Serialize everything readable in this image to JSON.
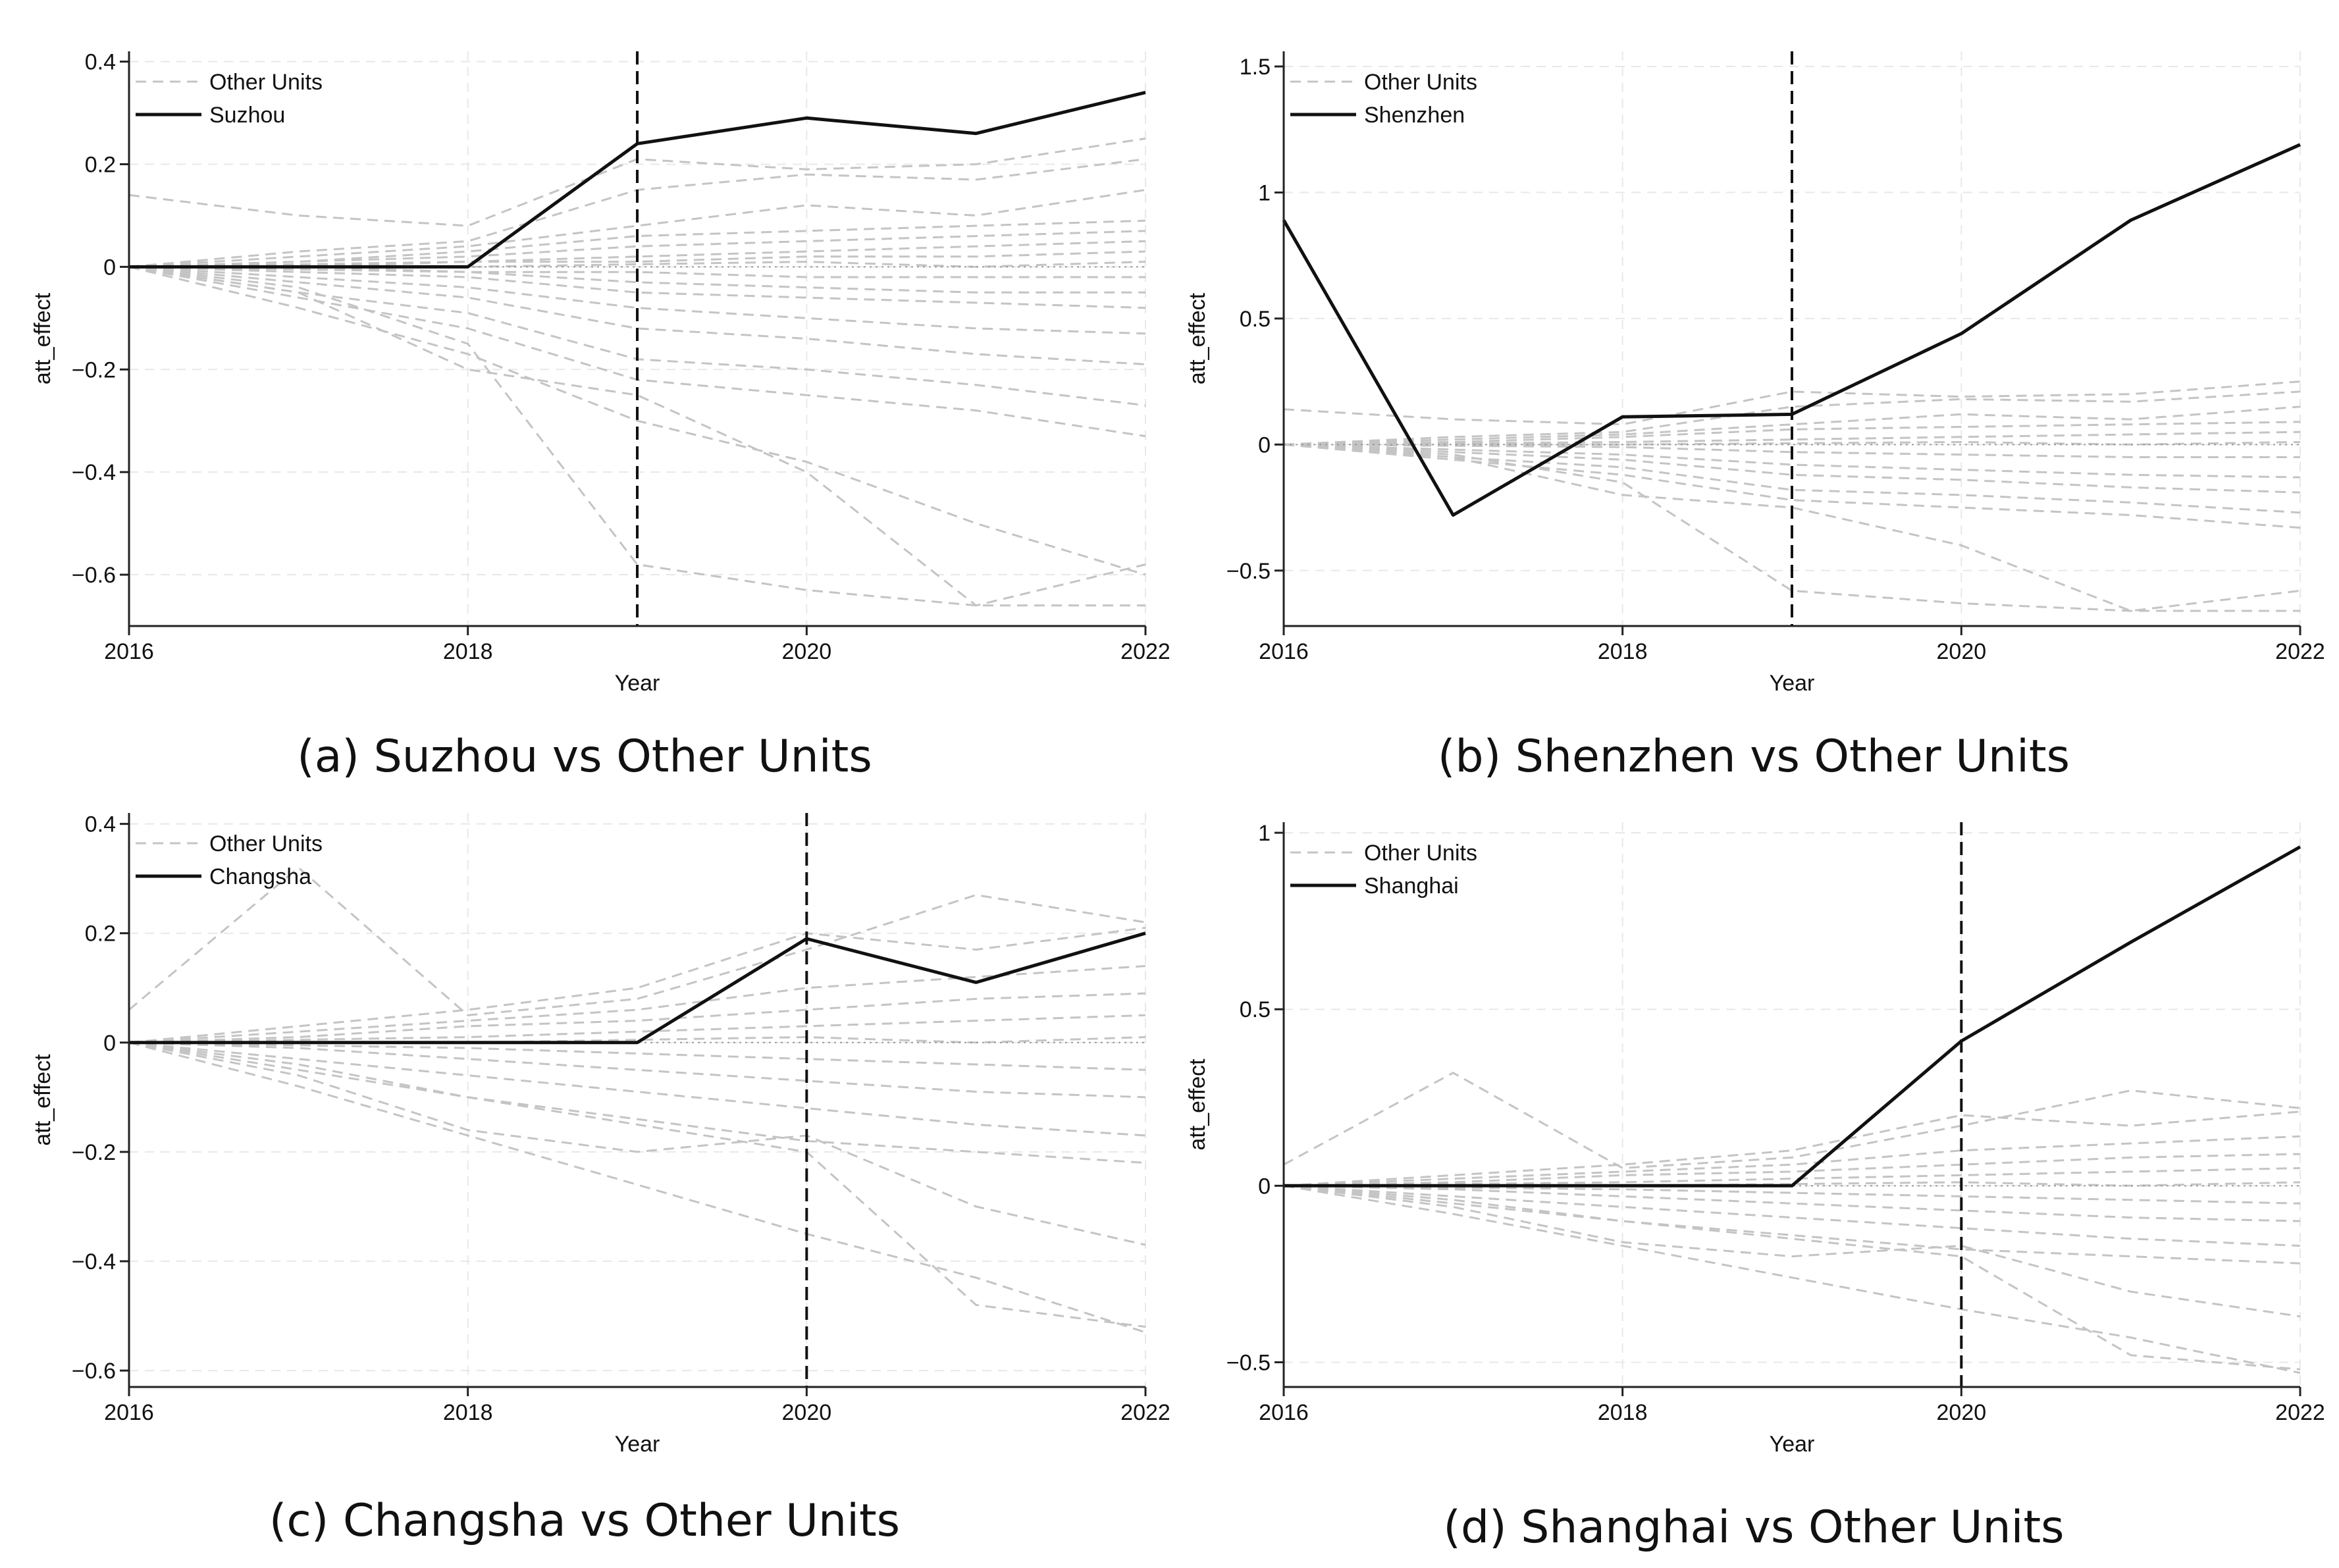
{
  "figure": {
    "description_labels": [
      "(a)",
      "(b)",
      "(c)",
      "(d)"
    ]
  },
  "chart_data": [
    {
      "type": "line",
      "caption": "(a) Suzhou vs Other Units",
      "xlabel": "Year",
      "ylabel": "att_effect",
      "xlim": [
        2016,
        2022
      ],
      "ylim": [
        -0.7,
        0.42
      ],
      "xticks": [
        2016,
        2018,
        2020,
        2022
      ],
      "yticks": [
        0.4,
        0.2,
        0,
        -0.2,
        -0.4,
        -0.6
      ],
      "ytick_labels": [
        "0.4",
        "0.2",
        "0",
        "−0.2",
        "−0.4",
        "−0.6"
      ],
      "treatment_year": 2019,
      "legend": [
        "Other Units",
        "Suzhou"
      ],
      "x": [
        2016,
        2017,
        2018,
        2019,
        2020,
        2021,
        2022
      ],
      "treated": {
        "name": "Suzhou",
        "values": [
          0,
          0,
          0,
          0.24,
          0.29,
          0.26,
          0.34
        ]
      },
      "others": [
        [
          0.14,
          0.1,
          0.08,
          0.21,
          0.19,
          0.2,
          0.25
        ],
        [
          0,
          0.03,
          0.05,
          0.15,
          0.18,
          0.17,
          0.21
        ],
        [
          0,
          0.02,
          0.04,
          0.08,
          0.12,
          0.1,
          0.15
        ],
        [
          0,
          0.01,
          0.03,
          0.06,
          0.07,
          0.08,
          0.09
        ],
        [
          0,
          0.01,
          0.02,
          0.04,
          0.05,
          0.06,
          0.07
        ],
        [
          0,
          0.005,
          0.01,
          0.02,
          0.03,
          0.04,
          0.05
        ],
        [
          0,
          0,
          0.01,
          0.01,
          0.02,
          0.02,
          0.03
        ],
        [
          0,
          0,
          0,
          0.005,
          0.01,
          0.0,
          0.01
        ],
        [
          0,
          0,
          -0.01,
          -0.01,
          -0.02,
          -0.02,
          -0.02
        ],
        [
          0,
          -0.005,
          -0.01,
          -0.03,
          -0.04,
          -0.05,
          -0.05
        ],
        [
          0,
          -0.01,
          -0.02,
          -0.05,
          -0.06,
          -0.07,
          -0.08
        ],
        [
          0,
          -0.02,
          -0.04,
          -0.08,
          -0.1,
          -0.12,
          -0.13
        ],
        [
          0,
          -0.03,
          -0.06,
          -0.12,
          -0.14,
          -0.17,
          -0.19
        ],
        [
          0,
          -0.05,
          -0.09,
          -0.18,
          -0.2,
          -0.23,
          -0.27
        ],
        [
          0,
          -0.06,
          -0.12,
          -0.22,
          -0.25,
          -0.28,
          -0.33
        ],
        [
          0,
          -0.08,
          -0.17,
          -0.3,
          -0.38,
          -0.5,
          -0.6
        ],
        [
          0,
          -0.04,
          -0.15,
          -0.58,
          -0.63,
          -0.66,
          -0.66
        ],
        [
          0,
          -0.05,
          -0.2,
          -0.25,
          -0.4,
          -0.66,
          -0.58
        ]
      ]
    },
    {
      "type": "line",
      "caption": "(b) Shenzhen vs Other Units",
      "xlabel": "Year",
      "ylabel": "att_effect",
      "xlim": [
        2016,
        2022
      ],
      "ylim": [
        -0.72,
        1.56
      ],
      "xticks": [
        2016,
        2018,
        2020,
        2022
      ],
      "yticks": [
        1.5,
        1,
        0.5,
        0,
        -0.5
      ],
      "ytick_labels": [
        "1.5",
        "1",
        "0.5",
        "0",
        "−0.5"
      ],
      "treatment_year": 2019,
      "legend": [
        "Other Units",
        "Shenzhen"
      ],
      "x": [
        2016,
        2017,
        2018,
        2019,
        2020,
        2021,
        2022
      ],
      "treated": {
        "name": "Shenzhen",
        "values": [
          0.89,
          -0.28,
          0.11,
          0.12,
          0.44,
          0.89,
          1.19
        ]
      },
      "others": [
        [
          0.14,
          0.1,
          0.08,
          0.21,
          0.19,
          0.2,
          0.25
        ],
        [
          0,
          0.03,
          0.05,
          0.15,
          0.18,
          0.17,
          0.21
        ],
        [
          0,
          0.02,
          0.04,
          0.08,
          0.12,
          0.1,
          0.15
        ],
        [
          0,
          0.01,
          0.03,
          0.06,
          0.07,
          0.08,
          0.09
        ],
        [
          0,
          0.005,
          0.01,
          0.02,
          0.03,
          0.04,
          0.05
        ],
        [
          0,
          0,
          0,
          0.005,
          0.01,
          0.0,
          0.01
        ],
        [
          0,
          -0.005,
          -0.01,
          -0.03,
          -0.04,
          -0.05,
          -0.05
        ],
        [
          0,
          -0.02,
          -0.04,
          -0.08,
          -0.1,
          -0.12,
          -0.13
        ],
        [
          0,
          -0.03,
          -0.06,
          -0.12,
          -0.14,
          -0.17,
          -0.19
        ],
        [
          0,
          -0.05,
          -0.09,
          -0.18,
          -0.2,
          -0.23,
          -0.27
        ],
        [
          0,
          -0.06,
          -0.12,
          -0.22,
          -0.25,
          -0.28,
          -0.33
        ],
        [
          0,
          -0.04,
          -0.15,
          -0.58,
          -0.63,
          -0.66,
          -0.66
        ],
        [
          0,
          -0.05,
          -0.2,
          -0.25,
          -0.4,
          -0.66,
          -0.58
        ]
      ]
    },
    {
      "type": "line",
      "caption": "(c) Changsha vs Other Units",
      "xlabel": "Year",
      "ylabel": "att_effect",
      "xlim": [
        2016,
        2022
      ],
      "ylim": [
        -0.63,
        0.42
      ],
      "xticks": [
        2016,
        2018,
        2020,
        2022
      ],
      "yticks": [
        0.4,
        0.2,
        0,
        -0.2,
        -0.4,
        -0.6
      ],
      "ytick_labels": [
        "0.4",
        "0.2",
        "0",
        "−0.2",
        "−0.4",
        "−0.6"
      ],
      "treatment_year": 2020,
      "legend": [
        "Other Units",
        "Changsha"
      ],
      "x": [
        2016,
        2017,
        2018,
        2019,
        2020,
        2021,
        2022
      ],
      "treated": {
        "name": "Changsha",
        "values": [
          0,
          0,
          0,
          0,
          0.19,
          0.11,
          0.2
        ]
      },
      "others": [
        [
          0.06,
          0.32,
          0.05,
          0.08,
          0.17,
          0.27,
          0.22
        ],
        [
          0,
          0.03,
          0.06,
          0.1,
          0.2,
          0.17,
          0.21
        ],
        [
          0,
          0.02,
          0.04,
          0.06,
          0.1,
          0.12,
          0.14
        ],
        [
          0,
          0.01,
          0.03,
          0.04,
          0.06,
          0.08,
          0.09
        ],
        [
          0,
          0.005,
          0.01,
          0.02,
          0.03,
          0.04,
          0.05
        ],
        [
          0,
          0,
          0,
          0.005,
          0.01,
          0.0,
          0.01
        ],
        [
          0,
          -0.005,
          -0.01,
          -0.02,
          -0.03,
          -0.04,
          -0.05
        ],
        [
          0,
          -0.01,
          -0.03,
          -0.05,
          -0.07,
          -0.09,
          -0.1
        ],
        [
          0,
          -0.03,
          -0.06,
          -0.09,
          -0.12,
          -0.15,
          -0.17
        ],
        [
          0,
          -0.05,
          -0.1,
          -0.14,
          -0.18,
          -0.2,
          -0.22
        ],
        [
          0,
          -0.06,
          -0.16,
          -0.2,
          -0.17,
          -0.3,
          -0.37
        ],
        [
          0,
          -0.08,
          -0.17,
          -0.26,
          -0.35,
          -0.43,
          -0.53
        ],
        [
          0,
          -0.04,
          -0.1,
          -0.15,
          -0.2,
          -0.48,
          -0.52
        ]
      ]
    },
    {
      "type": "line",
      "caption": "(d) Shanghai vs Other Units",
      "xlabel": "Year",
      "ylabel": "att_effect",
      "xlim": [
        2016,
        2022
      ],
      "ylim": [
        -0.57,
        1.03
      ],
      "xticks": [
        2016,
        2018,
        2020,
        2022
      ],
      "yticks": [
        1,
        0.5,
        0,
        -0.5
      ],
      "ytick_labels": [
        "1",
        "0.5",
        "0",
        "−0.5"
      ],
      "treatment_year": 2020,
      "legend": [
        "Other Units",
        "Shanghai"
      ],
      "x": [
        2016,
        2017,
        2018,
        2019,
        2020,
        2021,
        2022
      ],
      "treated": {
        "name": "Shanghai",
        "values": [
          0,
          0,
          0,
          0,
          0.41,
          0.69,
          0.96
        ]
      },
      "others": [
        [
          0.06,
          0.32,
          0.05,
          0.08,
          0.17,
          0.27,
          0.22
        ],
        [
          0,
          0.03,
          0.06,
          0.1,
          0.2,
          0.17,
          0.21
        ],
        [
          0,
          0.02,
          0.04,
          0.06,
          0.1,
          0.12,
          0.14
        ],
        [
          0,
          0.01,
          0.03,
          0.04,
          0.06,
          0.08,
          0.09
        ],
        [
          0,
          0.005,
          0.01,
          0.02,
          0.03,
          0.04,
          0.05
        ],
        [
          0,
          0,
          0,
          0.005,
          0.01,
          0.0,
          0.01
        ],
        [
          0,
          -0.005,
          -0.01,
          -0.02,
          -0.03,
          -0.04,
          -0.05
        ],
        [
          0,
          -0.01,
          -0.03,
          -0.05,
          -0.07,
          -0.09,
          -0.1
        ],
        [
          0,
          -0.03,
          -0.06,
          -0.09,
          -0.12,
          -0.15,
          -0.17
        ],
        [
          0,
          -0.05,
          -0.1,
          -0.14,
          -0.18,
          -0.2,
          -0.22
        ],
        [
          0,
          -0.06,
          -0.16,
          -0.2,
          -0.17,
          -0.3,
          -0.37
        ],
        [
          0,
          -0.08,
          -0.17,
          -0.26,
          -0.35,
          -0.43,
          -0.53
        ],
        [
          0,
          -0.04,
          -0.1,
          -0.15,
          -0.2,
          -0.48,
          -0.52
        ]
      ]
    }
  ],
  "colors": {
    "treated": "#111111",
    "others": "#c4c4c4",
    "grid": "#e8e8e8",
    "axis": "#222222"
  }
}
